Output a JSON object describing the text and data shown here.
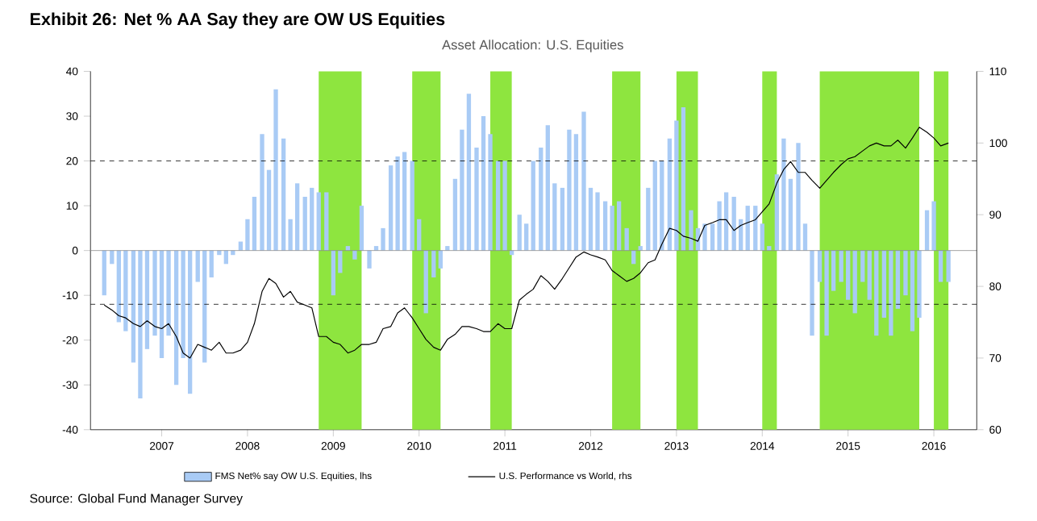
{
  "chart_data": {
    "type": "bar",
    "title": "Exhibit 26: Net % AA Say they are OW US Equities",
    "subtitle": "Asset Allocation: U.S. Equities",
    "annotations": [
      "Source: Global Fund Manager Survey"
    ],
    "x": [
      "2006-05",
      "2006-06",
      "2006-07",
      "2006-08",
      "2006-09",
      "2006-10",
      "2006-11",
      "2006-12",
      "2007-01",
      "2007-02",
      "2007-03",
      "2007-04",
      "2007-05",
      "2007-06",
      "2007-07",
      "2007-08",
      "2007-09",
      "2007-10",
      "2007-11",
      "2007-12",
      "2008-01",
      "2008-02",
      "2008-03",
      "2008-04",
      "2008-05",
      "2008-06",
      "2008-07",
      "2008-08",
      "2008-09",
      "2008-10",
      "2008-11",
      "2008-12",
      "2009-01",
      "2009-02",
      "2009-03",
      "2009-04",
      "2009-05",
      "2009-06",
      "2009-07",
      "2009-08",
      "2009-09",
      "2009-10",
      "2009-11",
      "2009-12",
      "2010-01",
      "2010-02",
      "2010-03",
      "2010-04",
      "2010-05",
      "2010-06",
      "2010-07",
      "2010-08",
      "2010-09",
      "2010-10",
      "2010-11",
      "2010-12",
      "2011-01",
      "2011-02",
      "2011-03",
      "2011-04",
      "2011-05",
      "2011-06",
      "2011-07",
      "2011-08",
      "2011-09",
      "2011-10",
      "2011-11",
      "2011-12",
      "2012-01",
      "2012-02",
      "2012-03",
      "2012-04",
      "2012-05",
      "2012-06",
      "2012-07",
      "2012-08",
      "2012-09",
      "2012-10",
      "2012-11",
      "2012-12",
      "2013-01",
      "2013-02",
      "2013-03",
      "2013-04",
      "2013-05",
      "2013-06",
      "2013-07",
      "2013-08",
      "2013-09",
      "2013-10",
      "2013-11",
      "2013-12",
      "2014-01",
      "2014-02",
      "2014-03",
      "2014-04",
      "2014-05",
      "2014-06",
      "2014-07",
      "2014-08",
      "2014-09",
      "2014-10",
      "2014-11",
      "2014-12",
      "2015-01",
      "2015-02",
      "2015-03",
      "2015-04",
      "2015-05",
      "2015-06",
      "2015-07",
      "2015-08",
      "2015-09",
      "2015-10",
      "2015-11",
      "2015-12",
      "2016-01",
      "2016-02",
      "2016-03"
    ],
    "series": [
      {
        "name": "FMS Net% say OW U.S. Equities, lhs",
        "color": "#a9cbf5",
        "values": [
          -10,
          -3,
          -16,
          -18,
          -25,
          -33,
          -22,
          -19,
          -24,
          -19,
          -30,
          -24,
          -32,
          -7,
          -25,
          -6,
          -1,
          -3,
          -1,
          2,
          7,
          12,
          26,
          18,
          36,
          25,
          7,
          15,
          12,
          14,
          13,
          13,
          -10,
          -5,
          1,
          -2,
          10,
          -4,
          1,
          5,
          19,
          21,
          22,
          20,
          7,
          -14,
          -6,
          -4,
          1,
          16,
          27,
          35,
          23,
          30,
          26,
          20,
          20,
          -1,
          8,
          6,
          20,
          23,
          28,
          15,
          14,
          27,
          26,
          31,
          14,
          13,
          11,
          10,
          11,
          5,
          -3,
          1,
          14,
          20,
          20,
          25,
          29,
          32,
          9,
          5,
          6,
          6,
          11,
          13,
          12,
          7,
          10,
          10,
          6,
          1,
          17,
          25,
          16,
          24,
          6,
          -19,
          -7,
          -19,
          -9,
          -7,
          -11,
          -14,
          -7,
          -11,
          -19,
          -15,
          -19,
          -13,
          -10,
          -18,
          -15,
          9,
          11,
          -7,
          -7
        ]
      },
      {
        "name": "U.S. Performance vs World, rhs",
        "type": "line",
        "axis": "y2",
        "color": "#000000",
        "values": [
          77.4,
          76.7,
          75.9,
          75.6,
          74.8,
          74.4,
          75.2,
          74.4,
          74.1,
          74.8,
          73,
          70.7,
          70,
          71.9,
          71.5,
          71.1,
          72.2,
          70.7,
          70.7,
          71.1,
          72.2,
          74.8,
          79.3,
          81.1,
          80.4,
          78.5,
          79.3,
          77.8,
          77.4,
          77,
          73,
          73,
          72.2,
          71.9,
          70.7,
          71.1,
          71.9,
          71.9,
          72.2,
          74.1,
          74.4,
          76.3,
          77,
          75.6,
          74.1,
          72.6,
          71.5,
          71.1,
          72.6,
          73.3,
          74.4,
          74.4,
          74.1,
          73.7,
          73.7,
          74.8,
          74.1,
          74.1,
          78.1,
          78.9,
          79.6,
          81.5,
          80.7,
          79.6,
          81.1,
          82.6,
          84.1,
          84.8,
          84.4,
          84.1,
          83.7,
          82.2,
          81.5,
          80.7,
          81.1,
          81.9,
          83.3,
          83.7,
          85.9,
          88.1,
          87.8,
          87,
          86.7,
          86.3,
          88.5,
          88.9,
          89.3,
          89.3,
          87.8,
          88.5,
          88.9,
          89.3,
          90.4,
          91.5,
          94.4,
          96.3,
          97.4,
          95.9,
          95.9,
          94.8,
          93.7,
          94.8,
          95.9,
          97,
          97.8,
          98.1,
          98.9,
          99.6,
          100,
          99.6,
          99.6,
          100.4,
          99.3,
          100.7,
          102.2,
          101.5,
          100.7,
          99.6,
          100
        ]
      }
    ],
    "xlim": [
      "2006-03",
      "2016-07"
    ],
    "xticks": [
      {
        "value": "2007-01",
        "label": "2007"
      },
      {
        "value": "2008-01",
        "label": "2008"
      },
      {
        "value": "2009-01",
        "label": "2009"
      },
      {
        "value": "2010-01",
        "label": "2010"
      },
      {
        "value": "2011-01",
        "label": "2011"
      },
      {
        "value": "2012-01",
        "label": "2012"
      },
      {
        "value": "2013-01",
        "label": "2013"
      },
      {
        "value": "2014-01",
        "label": "2014"
      },
      {
        "value": "2015-01",
        "label": "2015"
      },
      {
        "value": "2016-01",
        "label": "2016"
      }
    ],
    "ylim": [
      -40,
      40
    ],
    "yticks": [
      -40,
      -30,
      -20,
      -10,
      0,
      10,
      20,
      30,
      40
    ],
    "y2lim": [
      60,
      110
    ],
    "y2ticks": [
      60,
      70,
      80,
      90,
      100,
      110
    ],
    "ref_lines": [
      {
        "axis": "y",
        "value": 20,
        "line_style": "dashed",
        "color": "#000000"
      },
      {
        "axis": "y",
        "value": -12,
        "line_style": "dashed",
        "color": "#000000"
      },
      {
        "axis": "y",
        "value": 0,
        "line_style": "solid",
        "color": "#8c8c8c"
      }
    ],
    "bands": [
      {
        "axis": "x",
        "from": "2008-11",
        "to": "2009-05",
        "color": "#8ee53f"
      },
      {
        "axis": "x",
        "from": "2009-12",
        "to": "2010-04",
        "color": "#8ee53f"
      },
      {
        "axis": "x",
        "from": "2010-11",
        "to": "2011-02",
        "color": "#8ee53f"
      },
      {
        "axis": "x",
        "from": "2012-04",
        "to": "2012-08",
        "color": "#8ee53f"
      },
      {
        "axis": "x",
        "from": "2013-01",
        "to": "2013-04",
        "color": "#8ee53f"
      },
      {
        "axis": "x",
        "from": "2014-01",
        "to": "2014-03",
        "color": "#8ee53f"
      },
      {
        "axis": "x",
        "from": "2014-09",
        "to": "2015-11",
        "color": "#8ee53f"
      },
      {
        "axis": "x",
        "from": "2016-01",
        "to": "2016-03",
        "color": "#8ee53f"
      }
    ],
    "legend": "bottom"
  }
}
